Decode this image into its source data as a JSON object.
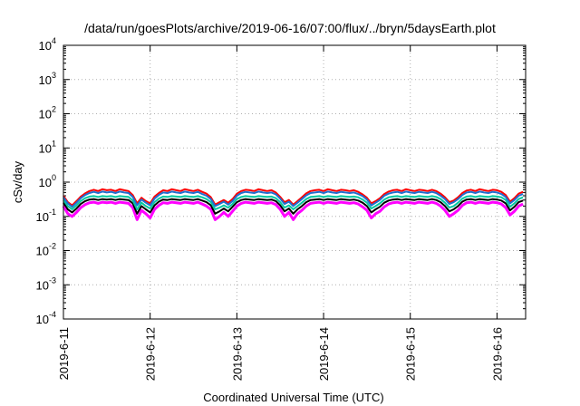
{
  "chart_data": {
    "type": "line",
    "title": "/data/run/goesPlots/archive/2019-06-16/07:00/flux/../bryn/5daysEarth.plot",
    "xlabel": "Coordinated Universal Time (UTC)",
    "ylabel": "cSv/day",
    "yscale": "log",
    "ylim": [
      0.0001,
      10000
    ],
    "xlim_days": [
      0,
      5.33
    ],
    "grid": true,
    "x_ticks": [
      {
        "label": "2019-6-11",
        "day": 0
      },
      {
        "label": "2019-6-12",
        "day": 1
      },
      {
        "label": "2019-6-13",
        "day": 2
      },
      {
        "label": "2019-6-14",
        "day": 3
      },
      {
        "label": "2019-6-15",
        "day": 4
      },
      {
        "label": "2019-6-16",
        "day": 5
      }
    ],
    "y_ticks": [
      {
        "mant": "10",
        "exp": "4",
        "value": 10000
      },
      {
        "mant": "10",
        "exp": "3",
        "value": 1000
      },
      {
        "mant": "10",
        "exp": "2",
        "value": 100
      },
      {
        "mant": "10",
        "exp": "1",
        "value": 10
      },
      {
        "mant": "10",
        "exp": "0",
        "value": 1
      },
      {
        "mant": "10",
        "exp": "-1",
        "value": 0.1
      },
      {
        "mant": "10",
        "exp": "-2",
        "value": 0.01
      },
      {
        "mant": "10",
        "exp": "-3",
        "value": 0.001
      },
      {
        "mant": "10",
        "exp": "-4",
        "value": 0.0001
      }
    ],
    "x_days": [
      0.0,
      0.05,
      0.1,
      0.15,
      0.2,
      0.25,
      0.3,
      0.35,
      0.4,
      0.45,
      0.5,
      0.55,
      0.6,
      0.65,
      0.7,
      0.75,
      0.8,
      0.85,
      0.9,
      0.95,
      1.0,
      1.05,
      1.1,
      1.15,
      1.2,
      1.25,
      1.3,
      1.35,
      1.4,
      1.45,
      1.5,
      1.55,
      1.6,
      1.65,
      1.7,
      1.75,
      1.8,
      1.85,
      1.9,
      1.95,
      2.0,
      2.05,
      2.1,
      2.15,
      2.2,
      2.25,
      2.3,
      2.35,
      2.4,
      2.45,
      2.5,
      2.55,
      2.6,
      2.65,
      2.7,
      2.75,
      2.8,
      2.85,
      2.9,
      2.95,
      3.0,
      3.05,
      3.1,
      3.15,
      3.2,
      3.25,
      3.3,
      3.35,
      3.4,
      3.45,
      3.5,
      3.55,
      3.6,
      3.65,
      3.7,
      3.75,
      3.8,
      3.85,
      3.9,
      3.95,
      4.0,
      4.05,
      4.1,
      4.15,
      4.2,
      4.25,
      4.3,
      4.35,
      4.4,
      4.45,
      4.5,
      4.55,
      4.6,
      4.65,
      4.7,
      4.75,
      4.8,
      4.85,
      4.9,
      4.95,
      5.0,
      5.05,
      5.1,
      5.15,
      5.2,
      5.25,
      5.3
    ],
    "series": [
      {
        "color": "#ff00ff",
        "values": [
          0.2,
          0.12,
          0.1,
          0.13,
          0.18,
          0.22,
          0.25,
          0.26,
          0.24,
          0.26,
          0.25,
          0.26,
          0.24,
          0.26,
          0.25,
          0.24,
          0.18,
          0.08,
          0.15,
          0.12,
          0.09,
          0.16,
          0.21,
          0.25,
          0.24,
          0.26,
          0.25,
          0.24,
          0.26,
          0.25,
          0.24,
          0.26,
          0.23,
          0.2,
          0.16,
          0.08,
          0.1,
          0.13,
          0.1,
          0.14,
          0.2,
          0.24,
          0.26,
          0.25,
          0.24,
          0.26,
          0.25,
          0.24,
          0.25,
          0.22,
          0.16,
          0.1,
          0.13,
          0.08,
          0.12,
          0.15,
          0.2,
          0.24,
          0.25,
          0.26,
          0.24,
          0.26,
          0.25,
          0.24,
          0.26,
          0.25,
          0.24,
          0.25,
          0.23,
          0.19,
          0.15,
          0.09,
          0.12,
          0.14,
          0.19,
          0.23,
          0.25,
          0.26,
          0.24,
          0.26,
          0.25,
          0.24,
          0.26,
          0.25,
          0.24,
          0.26,
          0.24,
          0.2,
          0.15,
          0.1,
          0.12,
          0.15,
          0.21,
          0.25,
          0.26,
          0.24,
          0.26,
          0.25,
          0.24,
          0.26,
          0.25,
          0.23,
          0.18,
          0.11,
          0.14,
          0.2,
          0.23
        ]
      },
      {
        "color": "#000000",
        "values": [
          0.25,
          0.16,
          0.13,
          0.17,
          0.23,
          0.28,
          0.31,
          0.32,
          0.3,
          0.32,
          0.31,
          0.32,
          0.3,
          0.32,
          0.31,
          0.3,
          0.24,
          0.12,
          0.2,
          0.16,
          0.13,
          0.21,
          0.27,
          0.31,
          0.3,
          0.32,
          0.31,
          0.3,
          0.32,
          0.31,
          0.3,
          0.32,
          0.29,
          0.26,
          0.21,
          0.12,
          0.14,
          0.17,
          0.14,
          0.19,
          0.26,
          0.3,
          0.32,
          0.31,
          0.3,
          0.32,
          0.31,
          0.3,
          0.31,
          0.28,
          0.21,
          0.14,
          0.17,
          0.12,
          0.16,
          0.2,
          0.26,
          0.3,
          0.31,
          0.32,
          0.3,
          0.32,
          0.31,
          0.3,
          0.32,
          0.31,
          0.3,
          0.31,
          0.29,
          0.25,
          0.2,
          0.13,
          0.16,
          0.19,
          0.25,
          0.29,
          0.31,
          0.32,
          0.3,
          0.32,
          0.31,
          0.3,
          0.32,
          0.31,
          0.3,
          0.32,
          0.3,
          0.26,
          0.2,
          0.14,
          0.16,
          0.2,
          0.27,
          0.31,
          0.32,
          0.3,
          0.32,
          0.31,
          0.3,
          0.32,
          0.31,
          0.29,
          0.24,
          0.15,
          0.19,
          0.26,
          0.29
        ]
      },
      {
        "color": "#00c8a0",
        "values": [
          0.3,
          0.2,
          0.16,
          0.21,
          0.28,
          0.34,
          0.38,
          0.39,
          0.37,
          0.39,
          0.38,
          0.39,
          0.37,
          0.39,
          0.38,
          0.37,
          0.29,
          0.16,
          0.25,
          0.2,
          0.17,
          0.26,
          0.33,
          0.38,
          0.37,
          0.39,
          0.38,
          0.37,
          0.39,
          0.38,
          0.37,
          0.39,
          0.36,
          0.32,
          0.26,
          0.16,
          0.18,
          0.21,
          0.18,
          0.23,
          0.32,
          0.37,
          0.39,
          0.38,
          0.37,
          0.39,
          0.38,
          0.37,
          0.38,
          0.34,
          0.26,
          0.18,
          0.21,
          0.16,
          0.2,
          0.25,
          0.32,
          0.37,
          0.38,
          0.39,
          0.37,
          0.39,
          0.38,
          0.37,
          0.39,
          0.38,
          0.37,
          0.38,
          0.36,
          0.31,
          0.25,
          0.17,
          0.2,
          0.24,
          0.31,
          0.36,
          0.38,
          0.39,
          0.37,
          0.39,
          0.38,
          0.37,
          0.39,
          0.38,
          0.37,
          0.39,
          0.37,
          0.32,
          0.25,
          0.18,
          0.2,
          0.25,
          0.33,
          0.38,
          0.39,
          0.37,
          0.39,
          0.38,
          0.37,
          0.39,
          0.38,
          0.36,
          0.3,
          0.19,
          0.24,
          0.32,
          0.36
        ]
      },
      {
        "color": "#ff0000",
        "values": [
          0.4,
          0.26,
          0.21,
          0.28,
          0.38,
          0.47,
          0.55,
          0.6,
          0.55,
          0.62,
          0.58,
          0.6,
          0.55,
          0.62,
          0.58,
          0.55,
          0.42,
          0.24,
          0.35,
          0.28,
          0.24,
          0.38,
          0.48,
          0.58,
          0.55,
          0.62,
          0.58,
          0.55,
          0.62,
          0.58,
          0.55,
          0.6,
          0.52,
          0.46,
          0.36,
          0.22,
          0.26,
          0.3,
          0.25,
          0.32,
          0.46,
          0.55,
          0.6,
          0.58,
          0.55,
          0.62,
          0.58,
          0.55,
          0.58,
          0.5,
          0.37,
          0.26,
          0.3,
          0.22,
          0.28,
          0.36,
          0.47,
          0.55,
          0.58,
          0.6,
          0.55,
          0.62,
          0.58,
          0.55,
          0.6,
          0.58,
          0.55,
          0.58,
          0.52,
          0.44,
          0.35,
          0.24,
          0.28,
          0.34,
          0.45,
          0.53,
          0.58,
          0.6,
          0.55,
          0.62,
          0.58,
          0.55,
          0.6,
          0.58,
          0.55,
          0.6,
          0.55,
          0.46,
          0.36,
          0.26,
          0.29,
          0.36,
          0.48,
          0.57,
          0.6,
          0.55,
          0.62,
          0.58,
          0.55,
          0.6,
          0.58,
          0.52,
          0.42,
          0.27,
          0.34,
          0.46,
          0.52
        ]
      },
      {
        "color": "#1f6fd0",
        "values": [
          0.36,
          0.24,
          0.19,
          0.25,
          0.34,
          0.42,
          0.48,
          0.52,
          0.48,
          0.53,
          0.5,
          0.52,
          0.48,
          0.53,
          0.5,
          0.48,
          0.37,
          0.21,
          0.31,
          0.25,
          0.21,
          0.33,
          0.42,
          0.5,
          0.48,
          0.53,
          0.5,
          0.48,
          0.53,
          0.5,
          0.48,
          0.52,
          0.45,
          0.4,
          0.32,
          0.2,
          0.23,
          0.27,
          0.22,
          0.28,
          0.4,
          0.48,
          0.52,
          0.5,
          0.48,
          0.53,
          0.5,
          0.48,
          0.5,
          0.44,
          0.33,
          0.23,
          0.27,
          0.2,
          0.25,
          0.32,
          0.41,
          0.48,
          0.5,
          0.52,
          0.48,
          0.53,
          0.5,
          0.48,
          0.52,
          0.5,
          0.48,
          0.5,
          0.45,
          0.39,
          0.31,
          0.21,
          0.25,
          0.3,
          0.4,
          0.46,
          0.5,
          0.52,
          0.48,
          0.53,
          0.5,
          0.48,
          0.52,
          0.5,
          0.48,
          0.52,
          0.48,
          0.4,
          0.32,
          0.23,
          0.26,
          0.32,
          0.42,
          0.5,
          0.52,
          0.48,
          0.53,
          0.5,
          0.48,
          0.52,
          0.5,
          0.45,
          0.37,
          0.24,
          0.3,
          0.4,
          0.45
        ]
      }
    ]
  }
}
